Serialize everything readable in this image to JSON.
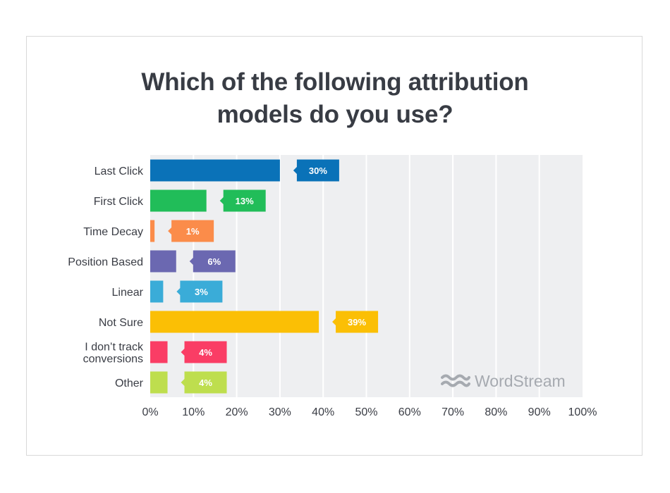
{
  "title_line1": "Which of the following attribution",
  "title_line2": "models do you use?",
  "brand": "WordStream",
  "colors": {
    "grid_band": "#eeeff1",
    "grid_line": "#ffffff",
    "axis_text": "#3a3d45",
    "logo": "#a6aab0"
  },
  "chart_data": {
    "type": "bar",
    "orientation": "horizontal",
    "categories": [
      "Last Click",
      "First Click",
      "Time Decay",
      "Position Based",
      "Linear",
      "Not Sure",
      "I don’t track conversions",
      "Other"
    ],
    "category_label_lines": [
      [
        "Last Click"
      ],
      [
        "First Click"
      ],
      [
        "Time Decay"
      ],
      [
        "Position Based"
      ],
      [
        "Linear"
      ],
      [
        "Not Sure"
      ],
      [
        "I don’t track",
        "conversions"
      ],
      [
        "Other"
      ]
    ],
    "values": [
      30,
      13,
      1,
      6,
      3,
      39,
      4,
      4
    ],
    "value_labels": [
      "30%",
      "13%",
      "1%",
      "6%",
      "3%",
      "39%",
      "4%",
      "4%"
    ],
    "bar_colors": [
      "#0a72b8",
      "#21bd59",
      "#fb8c4a",
      "#6b68b1",
      "#3aacd8",
      "#fbbf05",
      "#fa3d65",
      "#bede4e"
    ],
    "xlim": [
      0,
      100
    ],
    "xticks": [
      0,
      10,
      20,
      30,
      40,
      50,
      60,
      70,
      80,
      90,
      100
    ],
    "xtick_labels": [
      "0%",
      "10%",
      "20%",
      "30%",
      "40%",
      "50%",
      "60%",
      "70%",
      "80%",
      "90%",
      "100%"
    ],
    "grid": true,
    "legend": "none"
  }
}
